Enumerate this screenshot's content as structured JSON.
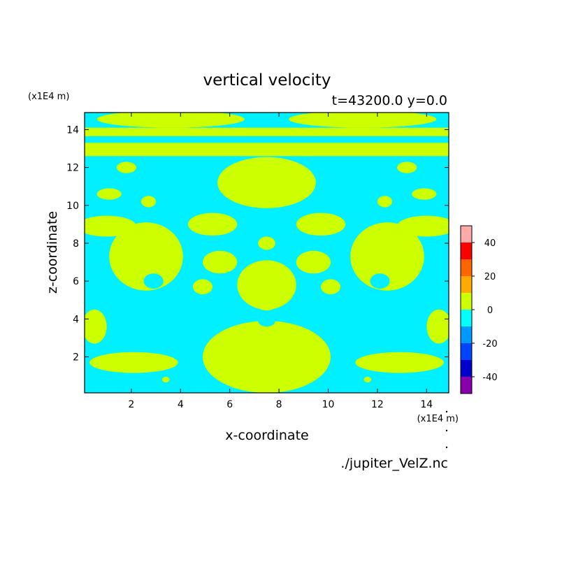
{
  "chart_data": {
    "type": "heatmap",
    "title": "vertical velocity",
    "subtitle": "t=43200.0 y=0.0",
    "xlabel": "x-coordinate",
    "ylabel": "z-coordinate",
    "x_unit": "(x1E4 m)",
    "y_unit": "(x1E4 m)",
    "source": "./jupiter_VelZ.nc",
    "xlim": [
      0.1,
      14.9
    ],
    "ylim": [
      0.1,
      14.9
    ],
    "x_ticks": [
      2,
      4,
      6,
      8,
      10,
      12,
      14
    ],
    "y_ticks": [
      2,
      4,
      6,
      8,
      10,
      12,
      14
    ],
    "grid": false,
    "colorbar": {
      "position": "right",
      "levels": [
        -50,
        -40,
        -30,
        -20,
        -10,
        0,
        10,
        20,
        30,
        40,
        50
      ],
      "tick_labels": [
        "40",
        "20",
        "0",
        "-20",
        "-40"
      ],
      "tick_values": [
        40,
        20,
        0,
        -20,
        -40
      ],
      "colors": [
        "#8800aa",
        "#0000cc",
        "#0044ff",
        "#0099ff",
        "#00ffff",
        "#ccff00",
        "#ffaa00",
        "#ff6600",
        "#ff0000",
        "#ffaaaa"
      ]
    },
    "field_colors": {
      "negative": "#00f0ff",
      "positive": "#ccff00"
    },
    "positive_regions": {
      "bands": [
        {
          "x": [
            0.1,
            14.9
          ],
          "z": [
            13.65,
            14.1
          ]
        },
        {
          "x": [
            0.1,
            14.9
          ],
          "z": [
            12.6,
            13.3
          ]
        }
      ],
      "blobs": [
        {
          "cx": 3.6,
          "cz": 14.55,
          "rx": 3.0,
          "rz": 0.45
        },
        {
          "cx": 11.4,
          "cz": 14.55,
          "rx": 3.0,
          "rz": 0.45
        },
        {
          "cx": 7.5,
          "cz": 11.2,
          "rx": 2.0,
          "rz": 1.35
        },
        {
          "cx": 7.5,
          "cz": 2.0,
          "rx": 2.6,
          "rz": 1.9
        },
        {
          "cx": 7.5,
          "cz": 5.8,
          "rx": 1.2,
          "rz": 1.3
        },
        {
          "cx": 7.5,
          "cz": 8.0,
          "rx": 0.35,
          "rz": 0.35
        },
        {
          "cx": 7.5,
          "cz": 4.6,
          "rx": 0.3,
          "rz": 0.15
        },
        {
          "cx": 2.6,
          "cz": 7.3,
          "rx": 1.5,
          "rz": 1.8
        },
        {
          "cx": 12.4,
          "cz": 7.3,
          "rx": 1.5,
          "rz": 1.8
        },
        {
          "cx": 2.1,
          "cz": 1.7,
          "rx": 1.8,
          "rz": 0.55
        },
        {
          "cx": 12.9,
          "cz": 1.7,
          "rx": 1.8,
          "rz": 0.55
        },
        {
          "cx": 1.0,
          "cz": 8.9,
          "rx": 1.2,
          "rz": 0.55
        },
        {
          "cx": 14.0,
          "cz": 8.9,
          "rx": 1.2,
          "rz": 0.55
        },
        {
          "cx": 0.5,
          "cz": 3.6,
          "rx": 0.5,
          "rz": 0.9
        },
        {
          "cx": 14.5,
          "cz": 3.6,
          "rx": 0.5,
          "rz": 0.9
        },
        {
          "cx": 5.3,
          "cz": 9.0,
          "rx": 1.0,
          "rz": 0.6
        },
        {
          "cx": 9.7,
          "cz": 9.0,
          "rx": 1.0,
          "rz": 0.6
        },
        {
          "cx": 5.6,
          "cz": 7.0,
          "rx": 0.7,
          "rz": 0.6
        },
        {
          "cx": 9.4,
          "cz": 7.0,
          "rx": 0.7,
          "rz": 0.6
        },
        {
          "cx": 1.8,
          "cz": 12.0,
          "rx": 0.4,
          "rz": 0.3
        },
        {
          "cx": 13.2,
          "cz": 12.0,
          "rx": 0.4,
          "rz": 0.3
        },
        {
          "cx": 1.1,
          "cz": 10.6,
          "rx": 0.5,
          "rz": 0.3
        },
        {
          "cx": 13.9,
          "cz": 10.6,
          "rx": 0.5,
          "rz": 0.3
        },
        {
          "cx": 2.7,
          "cz": 10.2,
          "rx": 0.3,
          "rz": 0.3
        },
        {
          "cx": 12.3,
          "cz": 10.2,
          "rx": 0.3,
          "rz": 0.3
        },
        {
          "cx": 4.9,
          "cz": 5.7,
          "rx": 0.4,
          "rz": 0.4
        },
        {
          "cx": 10.1,
          "cz": 5.7,
          "rx": 0.4,
          "rz": 0.4
        },
        {
          "cx": 3.4,
          "cz": 0.8,
          "rx": 0.15,
          "rz": 0.15
        },
        {
          "cx": 11.6,
          "cz": 0.8,
          "rx": 0.15,
          "rz": 0.15
        }
      ],
      "holes": [
        {
          "cx": 7.5,
          "cz": 9.2,
          "rx": 0.9,
          "rz": 0.45
        },
        {
          "cx": 7.5,
          "cz": 3.9,
          "rx": 0.35,
          "rz": 0.3
        },
        {
          "cx": 2.9,
          "cz": 6.0,
          "rx": 0.4,
          "rz": 0.4
        },
        {
          "cx": 12.1,
          "cz": 6.0,
          "rx": 0.4,
          "rz": 0.4
        }
      ]
    }
  }
}
